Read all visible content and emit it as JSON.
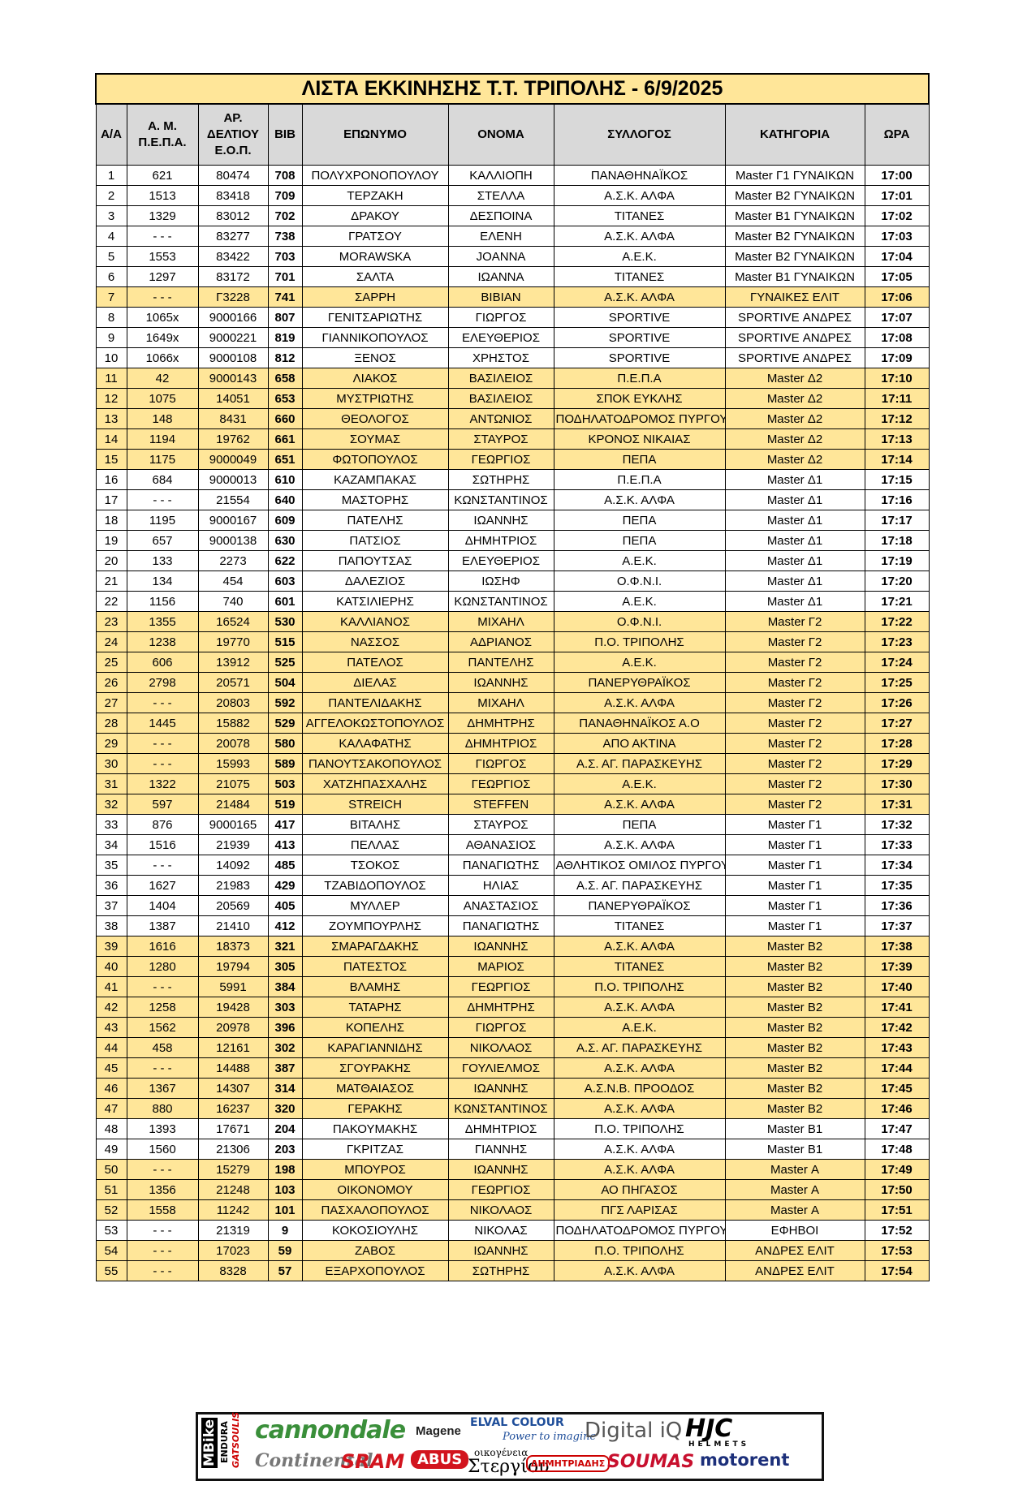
{
  "title": "ΛΙΣΤΑ ΕΚΚΙΝΗΣΗΣ Τ.Τ. ΤΡΙΠΟΛΗΣ - 6/9/2025",
  "table": {
    "headers": [
      "Α/Α",
      "Α. Μ. Π.Ε.Π.Α.",
      "ΑΡ. ΔΕΛΤΙΟΥ Ε.Ο.Π.",
      "BIB",
      "ΕΠΩΝΥΜΟ",
      "ΟΝΟΜΑ",
      "ΣΥΛΛΟΓΟΣ",
      "ΚΑΤΗΓΟΡΙΑ",
      "ΩΡΑ"
    ],
    "rows": [
      [
        "1",
        "621",
        "80474",
        "708",
        "ΠΟΛΥΧΡΟΝΟΠΟΥΛΟΥ",
        "ΚΑΛΛΙΟΠΗ",
        "ΠΑΝΑΘΗΝΑΪΚΟΣ",
        "Master Γ1 ΓΥΝΑΙΚΩΝ",
        "17:00"
      ],
      [
        "2",
        "1513",
        "83418",
        "709",
        "ΤΕΡΖΑΚΗ",
        "ΣΤΕΛΛΑ",
        "Α.Σ.Κ. ΑΛΦΑ",
        "Master Β2 ΓΥΝΑΙΚΩΝ",
        "17:01"
      ],
      [
        "3",
        "1329",
        "83012",
        "702",
        "ΔΡΑΚΟΥ",
        "ΔΕΣΠΟΙΝΑ",
        "ΤΙΤΑΝΕΣ",
        "Master Β1 ΓΥΝΑΙΚΩΝ",
        "17:02"
      ],
      [
        "4",
        "- - -",
        "83277",
        "738",
        "ΓΡΑΤΣΟΥ",
        "ΕΛΕΝΗ",
        "Α.Σ.Κ. ΑΛΦΑ",
        "Master Β2 ΓΥΝΑΙΚΩΝ",
        "17:03"
      ],
      [
        "5",
        "1553",
        "83422",
        "703",
        "MORAWSKA",
        "JOANNA",
        "Α.Ε.Κ.",
        "Master Β2 ΓΥΝΑΙΚΩΝ",
        "17:04"
      ],
      [
        "6",
        "1297",
        "83172",
        "701",
        "ΣΑΛΤΑ",
        "ΙΩΑΝΝΑ",
        "ΤΙΤΑΝΕΣ",
        "Master Β1 ΓΥΝΑΙΚΩΝ",
        "17:05"
      ],
      [
        "7",
        "- - -",
        "Γ3228",
        "741",
        "ΣΑΡΡΗ",
        "ΒΙΒΙΑΝ",
        "Α.Σ.Κ. ΑΛΦΑ",
        "ΓΥΝΑΙΚΕΣ ΕΛΙΤ",
        "17:06"
      ],
      [
        "8",
        "1065x",
        "9000166",
        "807",
        "ΓΕΝΙΤΣΑΡΙΩΤΗΣ",
        "ΓΙΩΡΓΟΣ",
        "SPORTIVE",
        "SPORTIVE ΑΝΔΡΕΣ",
        "17:07"
      ],
      [
        "9",
        "1649x",
        "9000221",
        "819",
        "ΓΙΑΝΝΙΚΟΠΟΥΛΟΣ",
        "ΕΛΕΥΘΕΡΙΟΣ",
        "SPORTIVE",
        "SPORTIVE ΑΝΔΡΕΣ",
        "17:08"
      ],
      [
        "10",
        "1066x",
        "9000108",
        "812",
        "ΞΕΝΟΣ",
        "ΧΡΗΣΤΟΣ",
        "SPORTIVE",
        "SPORTIVE ΑΝΔΡΕΣ",
        "17:09"
      ],
      [
        "11",
        "42",
        "9000143",
        "658",
        "ΛΙΑΚΟΣ",
        "ΒΑΣΙΛΕΙΟΣ",
        "Π.Ε.Π.Α",
        "Master Δ2",
        "17:10"
      ],
      [
        "12",
        "1075",
        "14051",
        "653",
        "ΜΥΣΤΡΙΩΤΗΣ",
        "ΒΑΣΙΛΕΙΟΣ",
        "ΣΠΟΚ ΕΥΚΛΗΣ",
        "Master Δ2",
        "17:11"
      ],
      [
        "13",
        "148",
        "8431",
        "660",
        "ΘΕΟΛΟΓΟΣ",
        "ΑΝΤΩΝΙΟΣ",
        "ΠΟΔΗΛΑΤΟΔΡΟΜΟΣ ΠΥΡΓΟΥ",
        "Master Δ2",
        "17:12"
      ],
      [
        "14",
        "1194",
        "19762",
        "661",
        "ΣΟΥΜΑΣ",
        "ΣΤΑΥΡΟΣ",
        "ΚΡΟΝΟΣ ΝΙΚΑΙΑΣ",
        "Master Δ2",
        "17:13"
      ],
      [
        "15",
        "1175",
        "9000049",
        "651",
        "ΦΩΤΟΠΟΥΛΟΣ",
        "ΓΕΩΡΓΙΟΣ",
        "ΠΕΠΑ",
        "Master Δ2",
        "17:14"
      ],
      [
        "16",
        "684",
        "9000013",
        "610",
        "ΚΑΖΑΜΠΑΚΑΣ",
        "ΣΩΤΗΡΗΣ",
        "Π.Ε.Π.Α",
        "Master Δ1",
        "17:15"
      ],
      [
        "17",
        "- - -",
        "21554",
        "640",
        "ΜΑΣΤΟΡΗΣ",
        "ΚΩΝΣΤΑΝΤΙΝΟΣ",
        "Α.Σ.Κ. ΑΛΦΑ",
        "Master Δ1",
        "17:16"
      ],
      [
        "18",
        "1195",
        "9000167",
        "609",
        "ΠΑΤΕΛΗΣ",
        "ΙΩΑΝΝΗΣ",
        "ΠΕΠΑ",
        "Master Δ1",
        "17:17"
      ],
      [
        "19",
        "657",
        "9000138",
        "630",
        "ΠΑΤΣΙΟΣ",
        "ΔΗΜΗΤΡΙΟΣ",
        "ΠΕΠΑ",
        "Master Δ1",
        "17:18"
      ],
      [
        "20",
        "133",
        "2273",
        "622",
        "ΠΑΠΟΥΤΣΑΣ",
        "ΕΛΕΥΘΕΡΙΟΣ",
        "Α.Ε.Κ.",
        "Master Δ1",
        "17:19"
      ],
      [
        "21",
        "134",
        "454",
        "603",
        "ΔΑΛΕΖΙΟΣ",
        "ΙΩΣΗΦ",
        "Ο.Φ.Ν.Ι.",
        "Master Δ1",
        "17:20"
      ],
      [
        "22",
        "1156",
        "740",
        "601",
        "ΚΑΤΣΙΛΙΕΡΗΣ",
        "ΚΩΝΣΤΑΝΤΙΝΟΣ",
        "Α.Ε.Κ.",
        "Master Δ1",
        "17:21"
      ],
      [
        "23",
        "1355",
        "16524",
        "530",
        "ΚΑΛΛΙΑΝΟΣ",
        "ΜΙΧΑΗΛ",
        "Ο.Φ.Ν.Ι.",
        "Master Γ2",
        "17:22"
      ],
      [
        "24",
        "1238",
        "19770",
        "515",
        "ΝΑΣΣΟΣ",
        "ΑΔΡΙΑΝΟΣ",
        "Π.Ο. ΤΡΙΠΟΛΗΣ",
        "Master Γ2",
        "17:23"
      ],
      [
        "25",
        "606",
        "13912",
        "525",
        "ΠΑΤΕΛΟΣ",
        "ΠΑΝΤΕΛΗΣ",
        "Α.Ε.Κ.",
        "Master Γ2",
        "17:24"
      ],
      [
        "26",
        "2798",
        "20571",
        "504",
        "ΔΙΕΛΑΣ",
        "ΙΩΑΝΝΗΣ",
        "ΠΑΝΕΡΥΘΡΑΪΚΟΣ",
        "Master Γ2",
        "17:25"
      ],
      [
        "27",
        "- - -",
        "20803",
        "592",
        "ΠΑΝΤΕΛΙΔΑΚΗΣ",
        "ΜΙΧΑΗΛ",
        "Α.Σ.Κ. ΑΛΦΑ",
        "Master Γ2",
        "17:26"
      ],
      [
        "28",
        "1445",
        "15882",
        "529",
        "ΑΓΓΕΛΟΚΩΣΤΟΠΟΥΛΟΣ",
        "ΔΗΜΗΤΡΗΣ",
        "ΠΑΝΑΘΗΝΑΪΚΟΣ Α.Ο",
        "Master Γ2",
        "17:27"
      ],
      [
        "29",
        "- - -",
        "20078",
        "580",
        "ΚΑΛΑΦΑΤΗΣ",
        "ΔΗΜΗΤΡΙΟΣ",
        "ΑΠΟ ΑΚΤΙΝΑ",
        "Master Γ2",
        "17:28"
      ],
      [
        "30",
        "- - -",
        "15993",
        "589",
        "ΠΑΝΟΥΤΣΑΚΟΠΟΥΛΟΣ",
        "ΓΙΩΡΓΟΣ",
        "Α.Σ. ΑΓ. ΠΑΡΑΣΚΕΥΗΣ",
        "Master Γ2",
        "17:29"
      ],
      [
        "31",
        "1322",
        "21075",
        "503",
        "ΧΑΤΖΗΠΑΣΧΑΛΗΣ",
        "ΓΕΩΡΓΙΟΣ",
        "Α.Ε.Κ.",
        "Master Γ2",
        "17:30"
      ],
      [
        "32",
        "597",
        "21484",
        "519",
        "STREICH",
        "STEFFEN",
        "Α.Σ.Κ. ΑΛΦΑ",
        "Master Γ2",
        "17:31"
      ],
      [
        "33",
        "876",
        "9000165",
        "417",
        "ΒΙΤΑΛΗΣ",
        "ΣΤΑΥΡΟΣ",
        "ΠΕΠΑ",
        "Master Γ1",
        "17:32"
      ],
      [
        "34",
        "1516",
        "21939",
        "413",
        "ΠΕΛΛΑΣ",
        "ΑΘΑΝΑΣΙΟΣ",
        "Α.Σ.Κ. ΑΛΦΑ",
        "Master Γ1",
        "17:33"
      ],
      [
        "35",
        "- - -",
        "14092",
        "485",
        "ΤΣΟΚΟΣ",
        "ΠΑΝΑΓΙΩΤΗΣ",
        "ΑΘΛΗΤΙΚΟΣ ΟΜΙΛΟΣ ΠΥΡΓΟΥ",
        "Master Γ1",
        "17:34"
      ],
      [
        "36",
        "1627",
        "21983",
        "429",
        "ΤΖΑΒΙΔΟΠΟΥΛΟΣ",
        "ΗΛΙΑΣ",
        "Α.Σ. ΑΓ. ΠΑΡΑΣΚΕΥΗΣ",
        "Master Γ1",
        "17:35"
      ],
      [
        "37",
        "1404",
        "20569",
        "405",
        "ΜΥΛΛΕΡ",
        "ΑΝΑΣΤΑΣΙΟΣ",
        "ΠΑΝΕΡΥΘΡΑΪΚΟΣ",
        "Master Γ1",
        "17:36"
      ],
      [
        "38",
        "1387",
        "21410",
        "412",
        "ΖΟΥΜΠΟΥΡΛΗΣ",
        "ΠΑΝΑΓΙΩΤΗΣ",
        "ΤΙΤΑΝΕΣ",
        "Master Γ1",
        "17:37"
      ],
      [
        "39",
        "1616",
        "18373",
        "321",
        "ΣΜΑΡΑΓΔΑΚΗΣ",
        "ΙΩΑΝΝΗΣ",
        "Α.Σ.Κ. ΑΛΦΑ",
        "Master Β2",
        "17:38"
      ],
      [
        "40",
        "1280",
        "19794",
        "305",
        "ΠΑΤΕΣΤΟΣ",
        "ΜΑΡΙΟΣ",
        "ΤΙΤΑΝΕΣ",
        "Master Β2",
        "17:39"
      ],
      [
        "41",
        "- - -",
        "5991",
        "384",
        "ΒΛΑΜΗΣ",
        "ΓΕΩΡΓΙΟΣ",
        "Π.Ο. ΤΡΙΠΟΛΗΣ",
        "Master Β2",
        "17:40"
      ],
      [
        "42",
        "1258",
        "19428",
        "303",
        "ΤΑΤΑΡΗΣ",
        "ΔΗΜΗΤΡΗΣ",
        "Α.Σ.Κ. ΑΛΦΑ",
        "Master Β2",
        "17:41"
      ],
      [
        "43",
        "1562",
        "20978",
        "396",
        "ΚΟΠΕΛΗΣ",
        "ΓΙΩΡΓΟΣ",
        "Α.Ε.Κ.",
        "Master Β2",
        "17:42"
      ],
      [
        "44",
        "458",
        "12161",
        "302",
        "ΚΑΡΑΓΙΑΝΝΙΔΗΣ",
        "ΝΙΚΟΛΑΟΣ",
        "Α.Σ. ΑΓ. ΠΑΡΑΣΚΕΥΗΣ",
        "Master Β2",
        "17:43"
      ],
      [
        "45",
        "- - -",
        "14488",
        "387",
        "ΣΓΟΥΡΑΚΗΣ",
        "ΓΟΥΛΙΕΛΜΟΣ",
        "Α.Σ.Κ. ΑΛΦΑ",
        "Master Β2",
        "17:44"
      ],
      [
        "46",
        "1367",
        "14307",
        "314",
        "ΜΑΤΘΑΙΑΣΟΣ",
        "ΙΩΑΝΝΗΣ",
        "Α.Σ.Ν.Β. ΠΡΟΟΔΟΣ",
        "Master Β2",
        "17:45"
      ],
      [
        "47",
        "880",
        "16237",
        "320",
        "ΓΕΡΑΚΗΣ",
        "ΚΩΝΣΤΑΝΤΙΝΟΣ",
        "Α.Σ.Κ. ΑΛΦΑ",
        "Master Β2",
        "17:46"
      ],
      [
        "48",
        "1393",
        "17671",
        "204",
        "ΠΑΚΟΥΜΑΚΗΣ",
        "ΔΗΜΗΤΡΙΟΣ",
        "Π.Ο. ΤΡΙΠΟΛΗΣ",
        "Master Β1",
        "17:47"
      ],
      [
        "49",
        "1560",
        "21306",
        "203",
        "ΓΚΡΙΤΖΑΣ",
        "ΓΙΑΝΝΗΣ",
        "Α.Σ.Κ. ΑΛΦΑ",
        "Master Β1",
        "17:48"
      ],
      [
        "50",
        "- - -",
        "15279",
        "198",
        "ΜΠΟΥΡΟΣ",
        "ΙΩΑΝΝΗΣ",
        "Α.Σ.Κ. ΑΛΦΑ",
        "Master Α",
        "17:49"
      ],
      [
        "51",
        "1356",
        "21248",
        "103",
        "ΟΙΚΟΝΟΜΟΥ",
        "ΓΕΩΡΓΙΟΣ",
        "ΑΟ ΠΗΓΑΣΟΣ",
        "Master Α",
        "17:50"
      ],
      [
        "52",
        "1558",
        "11242",
        "101",
        "ΠΑΣΧΑΛΟΠΟΥΛΟΣ",
        "ΝΙΚΟΛΑΟΣ",
        "ΠΓΣ ΛΑΡΙΣΑΣ",
        "Master Α",
        "17:51"
      ],
      [
        "53",
        "- - -",
        "21319",
        "9",
        "ΚΟΚΟΣΙΟΥΛΗΣ",
        "ΝΙΚΟΛΑΣ",
        "ΠΟΔΗΛΑΤΟΔΡΟΜΟΣ ΠΥΡΓΟΥ",
        "ΕΦΗΒΟΙ",
        "17:52"
      ],
      [
        "54",
        "- - -",
        "17023",
        "59",
        "ΖΑΒΟΣ",
        "ΙΩΑΝΝΗΣ",
        "Π.Ο. ΤΡΙΠΟΛΗΣ",
        "ΑΝΔΡΕΣ ΕΛΙΤ",
        "17:53"
      ],
      [
        "55",
        "- - -",
        "8328",
        "57",
        "ΕΞΑΡΧΟΠΟΥΛΟΣ",
        "ΣΩΤΗΡΗΣ",
        "Α.Σ.Κ. ΑΛΦΑ",
        "ΑΝΔΡΕΣ ΕΛΙΤ",
        "17:54"
      ]
    ]
  },
  "sponsors": [
    "MBike",
    "ENDURA",
    "GATSOULIS",
    "cannondale",
    "Magene",
    "ELVAL COLOUR",
    "Power to imagine",
    "Digital iQ",
    "HJC",
    "HELMETS",
    "Continental",
    "SRAM",
    "ABUS",
    "οικογένεια",
    "Στεργίου",
    "ΔΗΜΗΤΡΙΑΔΗΣ",
    "SOUMAS",
    "motorent"
  ]
}
